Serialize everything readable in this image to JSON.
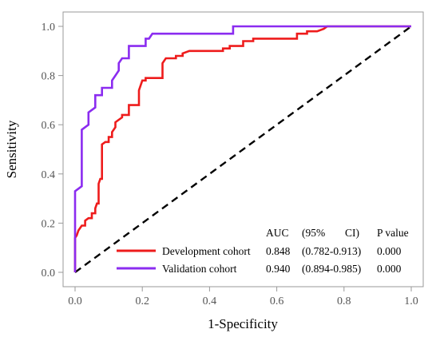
{
  "chart_data": {
    "type": "line",
    "title": "",
    "xlabel": "1-Specificity",
    "ylabel": "Sensitivity",
    "xlim": [
      0,
      1
    ],
    "ylim": [
      0,
      1
    ],
    "xticks": [
      "0.0",
      "0.2",
      "0.4",
      "0.6",
      "0.8",
      "1.0"
    ],
    "yticks": [
      "0.0",
      "0.2",
      "0.4",
      "0.6",
      "0.8",
      "1.0"
    ],
    "grid": false,
    "legend_position": "bottom-right",
    "legend_header": {
      "auc": "AUC",
      "ci_open": "(95%",
      "ci_close": "CI)",
      "p": "P value"
    },
    "series": [
      {
        "name": "Development cohort",
        "color": "#ee1c1c",
        "auc": "0.848",
        "ci": "(0.782-0.913)",
        "p": "0.000",
        "points": [
          [
            0,
            0
          ],
          [
            0,
            0.12
          ],
          [
            0,
            0.14
          ],
          [
            0.005,
            0.15
          ],
          [
            0.01,
            0.17
          ],
          [
            0.02,
            0.19
          ],
          [
            0.03,
            0.19
          ],
          [
            0.03,
            0.21
          ],
          [
            0.04,
            0.22
          ],
          [
            0.05,
            0.22
          ],
          [
            0.05,
            0.24
          ],
          [
            0.06,
            0.24
          ],
          [
            0.06,
            0.26
          ],
          [
            0.065,
            0.28
          ],
          [
            0.07,
            0.28
          ],
          [
            0.07,
            0.36
          ],
          [
            0.075,
            0.38
          ],
          [
            0.08,
            0.38
          ],
          [
            0.08,
            0.52
          ],
          [
            0.09,
            0.53
          ],
          [
            0.1,
            0.53
          ],
          [
            0.1,
            0.55
          ],
          [
            0.11,
            0.55
          ],
          [
            0.11,
            0.57
          ],
          [
            0.12,
            0.59
          ],
          [
            0.12,
            0.61
          ],
          [
            0.13,
            0.62
          ],
          [
            0.14,
            0.63
          ],
          [
            0.14,
            0.64
          ],
          [
            0.16,
            0.64
          ],
          [
            0.16,
            0.68
          ],
          [
            0.18,
            0.68
          ],
          [
            0.19,
            0.68
          ],
          [
            0.19,
            0.74
          ],
          [
            0.2,
            0.78
          ],
          [
            0.21,
            0.78
          ],
          [
            0.21,
            0.79
          ],
          [
            0.26,
            0.79
          ],
          [
            0.26,
            0.85
          ],
          [
            0.27,
            0.87
          ],
          [
            0.3,
            0.87
          ],
          [
            0.3,
            0.88
          ],
          [
            0.32,
            0.88
          ],
          [
            0.32,
            0.89
          ],
          [
            0.34,
            0.9
          ],
          [
            0.44,
            0.9
          ],
          [
            0.44,
            0.91
          ],
          [
            0.46,
            0.91
          ],
          [
            0.46,
            0.92
          ],
          [
            0.5,
            0.92
          ],
          [
            0.5,
            0.94
          ],
          [
            0.53,
            0.94
          ],
          [
            0.53,
            0.95
          ],
          [
            0.66,
            0.95
          ],
          [
            0.66,
            0.97
          ],
          [
            0.69,
            0.97
          ],
          [
            0.69,
            0.98
          ],
          [
            0.72,
            0.98
          ],
          [
            0.74,
            0.99
          ],
          [
            0.75,
            1.0
          ],
          [
            1.0,
            1.0
          ]
        ]
      },
      {
        "name": "Validation cohort",
        "color": "#8b2cf0",
        "auc": "0.940",
        "ci": "(0.894-0.985)",
        "p": "0.000",
        "points": [
          [
            0,
            0
          ],
          [
            0,
            0.33
          ],
          [
            0.02,
            0.35
          ],
          [
            0.02,
            0.58
          ],
          [
            0.04,
            0.6
          ],
          [
            0.04,
            0.65
          ],
          [
            0.06,
            0.67
          ],
          [
            0.06,
            0.72
          ],
          [
            0.08,
            0.72
          ],
          [
            0.08,
            0.75
          ],
          [
            0.11,
            0.75
          ],
          [
            0.11,
            0.78
          ],
          [
            0.12,
            0.8
          ],
          [
            0.13,
            0.82
          ],
          [
            0.13,
            0.85
          ],
          [
            0.14,
            0.87
          ],
          [
            0.16,
            0.87
          ],
          [
            0.16,
            0.92
          ],
          [
            0.21,
            0.92
          ],
          [
            0.21,
            0.95
          ],
          [
            0.22,
            0.95
          ],
          [
            0.23,
            0.97
          ],
          [
            0.47,
            0.97
          ],
          [
            0.47,
            1.0
          ],
          [
            1.0,
            1.0
          ]
        ]
      }
    ],
    "reference_line": {
      "from": [
        0,
        0
      ],
      "to": [
        1,
        1
      ],
      "style": "dashed",
      "color": "#000000"
    }
  }
}
